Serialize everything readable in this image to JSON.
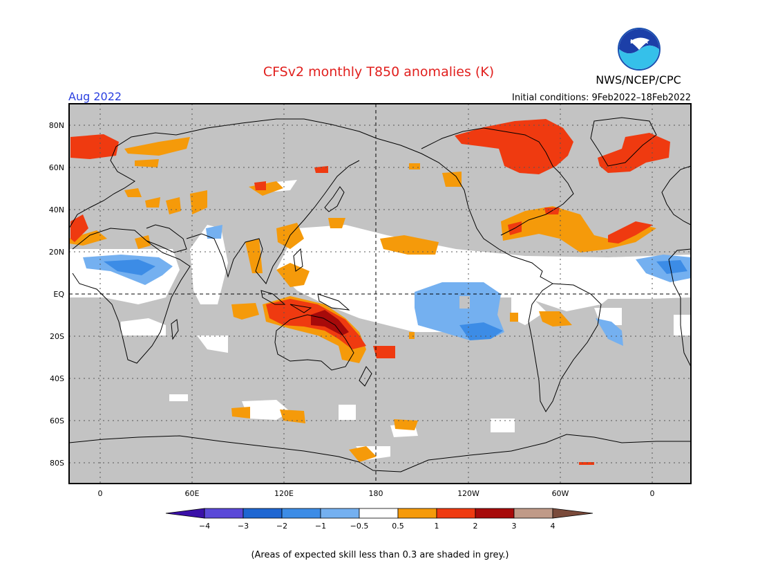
{
  "header": {
    "title": "CFSv2 monthly T850 anomalies (K)",
    "month": "Aug 2022",
    "initial_conditions": "Initial conditions: 9Feb2022–18Feb2022",
    "agency": "NWS/NCEP/CPC",
    "logo_text": "NOAA"
  },
  "map": {
    "lat_ticks": [
      "80N",
      "60N",
      "40N",
      "20N",
      "EQ",
      "20S",
      "40S",
      "60S",
      "80S"
    ],
    "lon_ticks": [
      "0",
      "60E",
      "120E",
      "180",
      "120W",
      "60W",
      "0"
    ],
    "colors": {
      "grey_low_skill": "#c3c3c3",
      "neutral": "#ffffff",
      "cool_1": "#74b0f0",
      "cool_2": "#3c8ce6",
      "warm_1": "#f59a0a",
      "warm_2": "#ef3a10",
      "warm_3": "#a70a0a",
      "coast": "#000000"
    }
  },
  "colorbar": {
    "labels": [
      "−4",
      "−3",
      "−2",
      "−1",
      "−0.5",
      "0.5",
      "1",
      "2",
      "3",
      "4"
    ],
    "colors": [
      "#3a10a8",
      "#5a48d8",
      "#1e66d2",
      "#3c8ce6",
      "#74b0f0",
      "#ffffff",
      "#f59a0a",
      "#ef3a10",
      "#a70a0a",
      "#c09a88",
      "#7a4a3a"
    ]
  },
  "footer": {
    "note": "(Areas of expected skill less than 0.3 are shaded in grey.)"
  }
}
